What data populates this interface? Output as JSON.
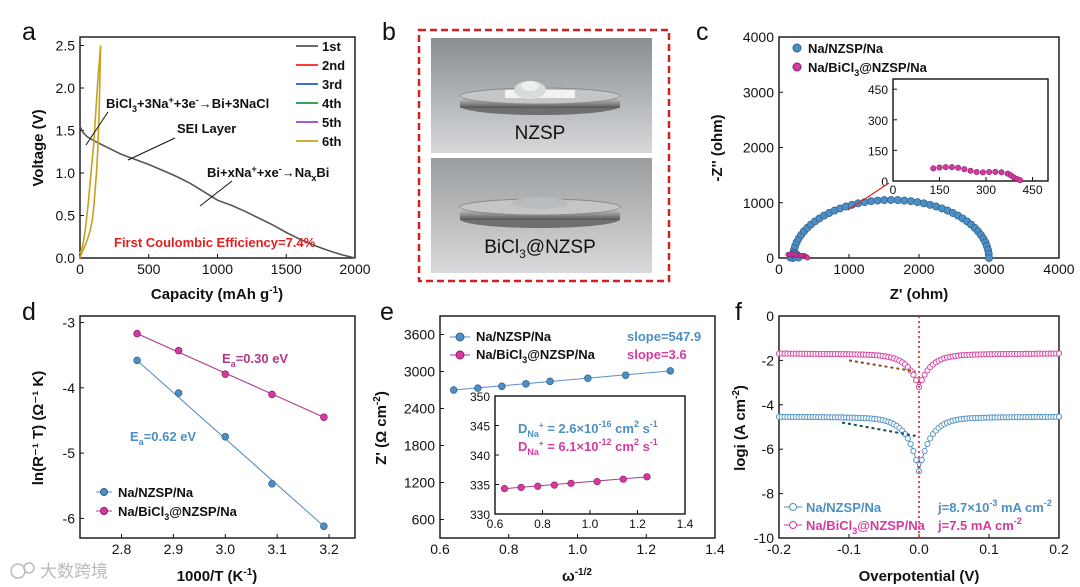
{
  "panels": {
    "a": "a",
    "b": "b",
    "c": "c",
    "d": "d",
    "e": "e",
    "f": "f"
  },
  "watermark": "大数跨境",
  "colors": {
    "blue": "#4d8fc4",
    "pink": "#d63a9e",
    "red": "#e02020",
    "dashed_red": "#d42020",
    "fit_blue": "#5a8fc8",
    "fit_pink": "#b0388a",
    "tafel_black": "#1a4a5a",
    "tafel_brown": "#8b4a1a"
  },
  "chart_data": [
    {
      "id": "a",
      "type": "line",
      "xlabel": "Capacity (mAh g",
      "xlabel_sup": "-1",
      "xlabel_end": ")",
      "ylabel": "Voltage (V)",
      "xlim": [
        0,
        2000
      ],
      "ylim": [
        0,
        2.6
      ],
      "xticks": [
        "0",
        "500",
        "1000",
        "1500",
        "2000"
      ],
      "yticks": [
        "0.0",
        "0.5",
        "1.0",
        "1.5",
        "2.0",
        "2.5"
      ],
      "legend": [
        {
          "name": "1st",
          "color": "#555555"
        },
        {
          "name": "2nd",
          "color": "#ff2020"
        },
        {
          "name": "3rd",
          "color": "#1f5fc0"
        },
        {
          "name": "4th",
          "color": "#1a9a3a"
        },
        {
          "name": "5th",
          "color": "#a040c0"
        },
        {
          "name": "6th",
          "color": "#c8a020"
        }
      ],
      "series_first": {
        "x": [
          0,
          20,
          50,
          100,
          200,
          300,
          400,
          500,
          600,
          700,
          800,
          900,
          1000,
          1100,
          1200,
          1300,
          1400,
          1500,
          1600,
          1700,
          1800,
          1900,
          2000
        ],
        "y": [
          1.55,
          1.48,
          1.43,
          1.38,
          1.3,
          1.22,
          1.16,
          1.1,
          1.03,
          0.96,
          0.88,
          0.78,
          0.68,
          0.62,
          0.55,
          0.47,
          0.39,
          0.3,
          0.22,
          0.15,
          0.09,
          0.04,
          0.0
        ]
      },
      "series_charge": {
        "x": [
          0,
          20,
          40,
          60,
          80,
          100,
          110,
          120,
          130,
          140,
          150
        ],
        "y": [
          0.05,
          0.15,
          0.35,
          0.65,
          1.0,
          1.35,
          1.6,
          1.85,
          2.1,
          2.3,
          2.5
        ]
      },
      "series_discharge": {
        "x": [
          150,
          140,
          130,
          120,
          110,
          100,
          90,
          70,
          50,
          30,
          10,
          0
        ],
        "y": [
          2.5,
          1.8,
          1.3,
          1.0,
          0.8,
          0.6,
          0.45,
          0.3,
          0.2,
          0.12,
          0.05,
          0.0
        ]
      },
      "annotations": {
        "reaction1_pre": "BiCl",
        "reaction1_sub1": "3",
        "reaction1_mid": "+3Na",
        "reaction1_sup1": "+",
        "reaction1_mid2": "+3e",
        "reaction1_sup2": "-",
        "reaction1_end": "→Bi+3NaCl",
        "sei": "SEI Layer",
        "reaction2_pre": "Bi+xNa",
        "reaction2_sup1": "+",
        "reaction2_mid": "+xe",
        "reaction2_sup2": "-",
        "reaction2_mid2": "→Na",
        "reaction2_sub": "x",
        "reaction2_end": "Bi",
        "ce": "First Coulombic Efficiency=7.4%"
      }
    },
    {
      "id": "b",
      "type": "photo",
      "label_top": "NZSP",
      "label_bottom_pre": "BiCl",
      "label_bottom_sub": "3",
      "label_bottom_end": "@NZSP"
    },
    {
      "id": "c",
      "type": "scatter",
      "xlabel": "Z' (ohm)",
      "ylabel": "-Z'' (ohm)",
      "xlim": [
        0,
        4000
      ],
      "ylim": [
        0,
        4000
      ],
      "xticks": [
        "0",
        "1000",
        "2000",
        "3000",
        "4000"
      ],
      "yticks": [
        "0",
        "1000",
        "2000",
        "3000",
        "4000"
      ],
      "legend": [
        "Na/NZSP/Na",
        "Na/BiCl3@NZSP/Na"
      ],
      "legend_bi_pre": "Na/BiCl",
      "legend_bi_sub": "3",
      "legend_bi_end": "@NZSP/Na",
      "nzsp_arc": {
        "x_start": 200,
        "x_end": 3000,
        "peak": 1050
      },
      "inset": {
        "xlim": [
          0,
          500
        ],
        "ylim": [
          0,
          500
        ],
        "xticks": [
          "0",
          "150",
          "300",
          "450"
        ],
        "yticks": [
          "0",
          "150",
          "300",
          "450"
        ],
        "bi_x": [
          130,
          150,
          170,
          190,
          210,
          230,
          250,
          270,
          290,
          310,
          330,
          350,
          370,
          380,
          390,
          400,
          410
        ],
        "bi_y": [
          62,
          66,
          68,
          68,
          65,
          58,
          50,
          44,
          42,
          44,
          45,
          43,
          36,
          28,
          18,
          10,
          4
        ]
      }
    },
    {
      "id": "d",
      "type": "scatter",
      "xlabel": "1000/T (K",
      "xlabel_sup": "-1",
      "xlabel_end": ")",
      "ylabel": "ln(R⁻¹ T) (Ω⁻¹ K)",
      "xlim": [
        2.72,
        3.25
      ],
      "ylim": [
        -6.3,
        -2.9
      ],
      "xticks": [
        "2.8",
        "2.9",
        "3.0",
        "3.1",
        "3.2"
      ],
      "yticks": [
        "-3",
        "-4",
        "-5",
        "-6"
      ],
      "series": [
        {
          "name": "Na/NZSP/Na",
          "x": [
            2.83,
            2.91,
            3.0,
            3.09,
            3.19
          ],
          "y": [
            -3.58,
            -4.08,
            -4.75,
            -5.47,
            -6.12
          ]
        },
        {
          "name": "Na/BiCl3@NZSP/Na",
          "x": [
            2.83,
            2.91,
            3.0,
            3.09,
            3.19
          ],
          "y": [
            -3.17,
            -3.43,
            -3.79,
            -4.1,
            -4.45
          ]
        }
      ],
      "legend_bi_pre": "Na/BiCl",
      "legend_bi_sub": "3",
      "legend_bi_end": "@NZSP/Na",
      "ea_blue_pre": "E",
      "ea_blue_sub": "a",
      "ea_blue_end": "=0.62 eV",
      "ea_pink_pre": "E",
      "ea_pink_sub": "a",
      "ea_pink_end": "=0.30 eV"
    },
    {
      "id": "e",
      "type": "scatter",
      "xlabel": "ω",
      "xlabel_sup": "-1/2",
      "ylabel_pre": "Z' (Ω cm",
      "ylabel_sup": "-2",
      "ylabel_end": ")",
      "xlim": [
        0.6,
        1.4
      ],
      "ylim": [
        300,
        3900
      ],
      "xticks": [
        "0.6",
        "0.8",
        "1.0",
        "1.2",
        "1.4"
      ],
      "yticks": [
        "600",
        "1200",
        "1800",
        "2400",
        "3000",
        "3600"
      ],
      "series": [
        {
          "name": "Na/NZSP/Na",
          "x": [
            0.64,
            0.71,
            0.78,
            0.85,
            0.92,
            1.03,
            1.14,
            1.27
          ],
          "y": [
            2700,
            2730,
            2760,
            2800,
            2840,
            2890,
            2940,
            3010
          ]
        }
      ],
      "legend_bi_pre": "Na/BiCl",
      "legend_bi_sub": "3",
      "legend_bi_end": "@NZSP/Na",
      "slope_blue": "slope=547.9",
      "slope_pink": "slope=3.6",
      "inset": {
        "xlim": [
          0.6,
          1.4
        ],
        "ylim": [
          330,
          350
        ],
        "xticks": [
          "0.6",
          "0.8",
          "1.0",
          "1.2",
          "1.4"
        ],
        "yticks": [
          "330",
          "335",
          "340",
          "345",
          "350"
        ],
        "x": [
          0.64,
          0.71,
          0.78,
          0.85,
          0.92,
          1.03,
          1.14,
          1.24
        ],
        "y": [
          334.3,
          334.5,
          334.7,
          334.9,
          335.2,
          335.5,
          335.9,
          336.3
        ]
      },
      "d_blue_pre": "D",
      "d_blue_sub": "Na",
      "d_blue_sup": "+",
      "d_blue_mid": " = 2.6×10",
      "d_blue_exp": "-16",
      "d_blue_end": " cm",
      "d_blue_exp2": "2",
      "d_blue_end2": " s",
      "d_blue_exp3": "-1",
      "d_pink_pre": "D",
      "d_pink_sub": "Na",
      "d_pink_sup": "+",
      "d_pink_mid": " = 6.1×10",
      "d_pink_exp": "-12",
      "d_pink_end": " cm",
      "d_pink_exp2": "2",
      "d_pink_end2": " s",
      "d_pink_exp3": "-1"
    },
    {
      "id": "f",
      "type": "line",
      "xlabel": "Overpotential (V)",
      "ylabel_pre": "logi (A cm",
      "ylabel_sup": "-2",
      "ylabel_end": ")",
      "xlim": [
        -0.2,
        0.2
      ],
      "ylim": [
        -10,
        0
      ],
      "xticks": [
        "-0.2",
        "-0.1",
        "0.0",
        "0.1",
        "0.2"
      ],
      "yticks": [
        "0",
        "-2",
        "-4",
        "-6",
        "-8",
        "-10"
      ],
      "legend": [
        "Na/NZSP/Na",
        "Na/BiCl3@NZSP/Na"
      ],
      "legend_bi_pre": "Na/BiCl",
      "legend_bi_sub": "3",
      "legend_bi_end": "@NZSP/Na",
      "j_blue_pre": "j=8.7×10",
      "j_blue_sup": "-3",
      "j_blue_end": " mA cm",
      "j_blue_sup2": "-2",
      "j_pink_pre": "j=7.5 mA cm",
      "j_pink_sup": "-2",
      "nzsp": {
        "i0": -4.7,
        "plateau": -4.6,
        "bottom": -7.0
      },
      "bi": {
        "i0": -1.8,
        "plateau": -1.75,
        "bottom": -3.2
      }
    }
  ]
}
